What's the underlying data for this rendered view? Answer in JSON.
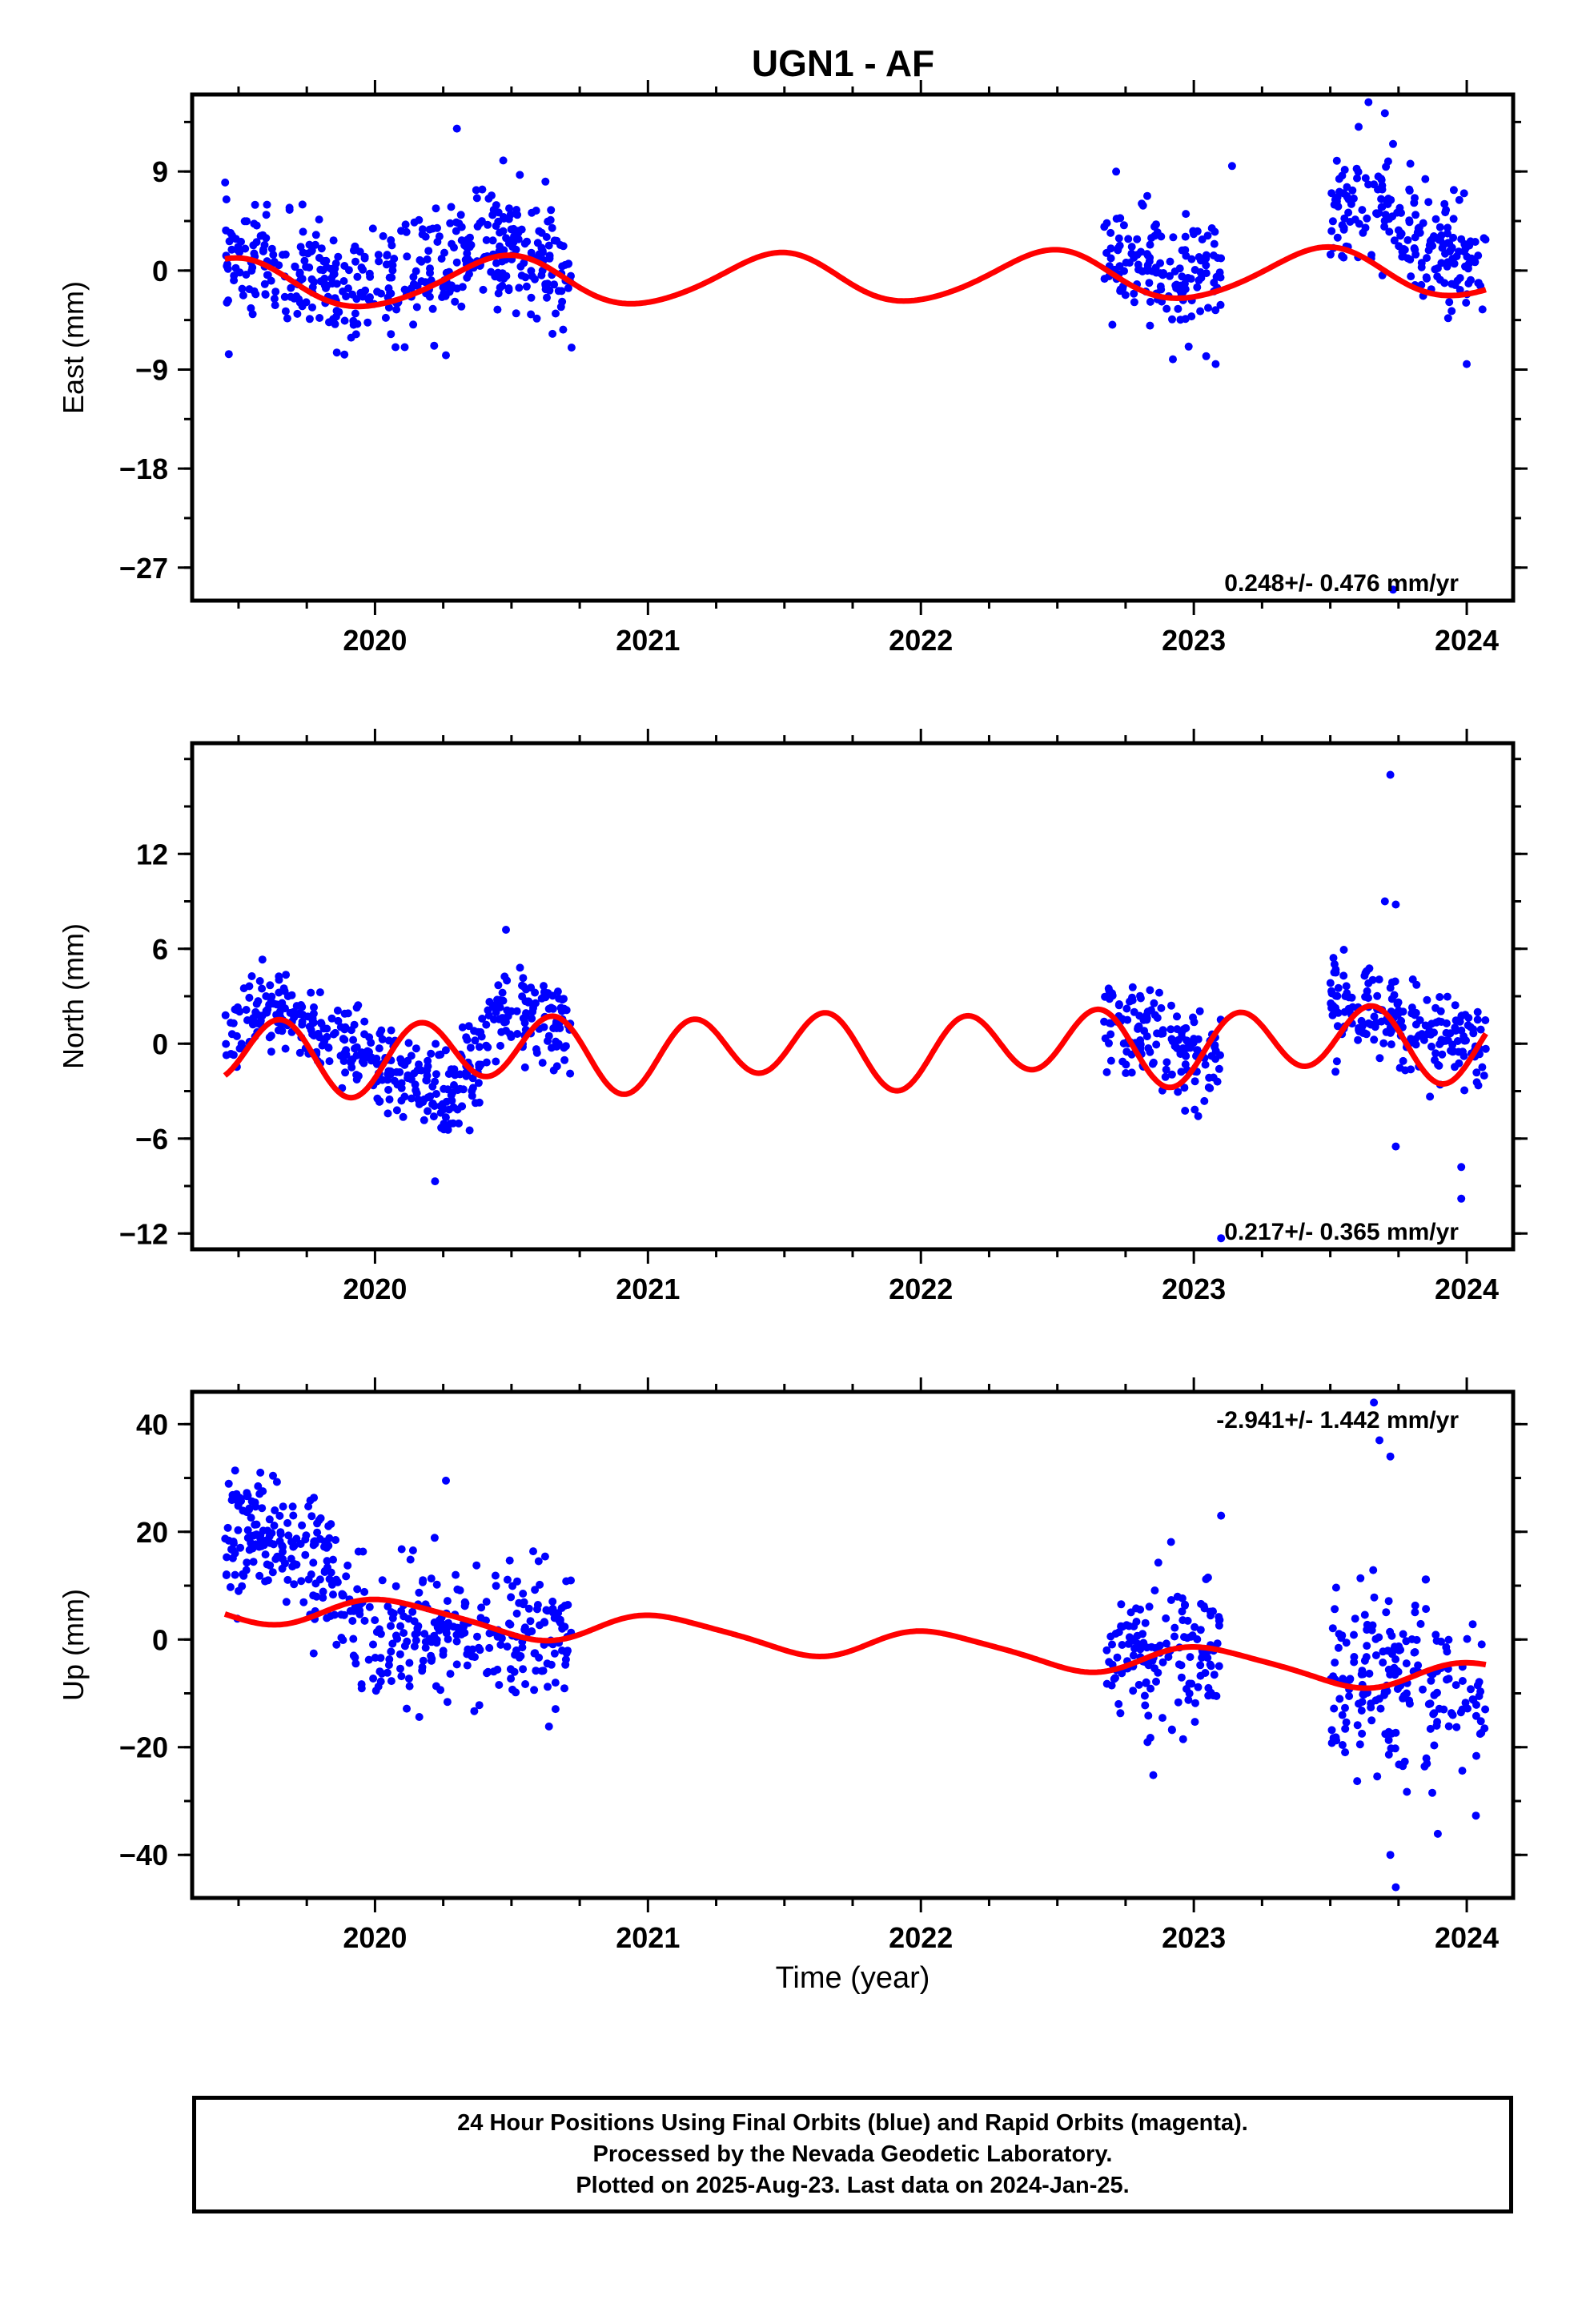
{
  "title": "UGN1 - AF",
  "xlabel": "Time (year)",
  "footer": {
    "line1": "24 Hour Positions Using Final Orbits (blue) and Rapid Orbits (magenta).",
    "line2": "Processed by the Nevada Geodetic Laboratory.",
    "line3": "Plotted on 2025-Aug-23. Last data on 2024-Jan-25."
  },
  "colors": {
    "points": "#0000ff",
    "model": "#ff0000",
    "frame": "#000000"
  },
  "chart_data": [
    {
      "type": "scatter",
      "component": "east",
      "ylabel": "East (mm)",
      "rate_label": "0.248+/- 0.476 mm/yr",
      "xlim": [
        2019.33,
        2024.17
      ],
      "ylim": [
        -30,
        16
      ],
      "yticks": [
        9,
        0,
        -9,
        -18,
        -27
      ],
      "xticks": [
        2020,
        2021,
        2022,
        2023,
        2024
      ],
      "model": {
        "offset": -0.7,
        "slope": 0.248,
        "ref_year": 2021.75,
        "annual_cos": -2.2,
        "annual_sin": 0.4,
        "semi_cos": 0.2,
        "semi_sin": 0.1
      },
      "data_segments": [
        {
          "start": 2019.45,
          "end": 2020.72,
          "spread": 2.5,
          "trend": [
            [
              2019.45,
              1.2
            ],
            [
              2019.95,
              -2
            ],
            [
              2020.45,
              2.5
            ],
            [
              2020.72,
              0
            ]
          ]
        },
        {
          "start": 2022.67,
          "end": 2023.1,
          "spread": 2.8,
          "trend": [
            [
              2022.67,
              0.5
            ],
            [
              2023.1,
              -0.5
            ]
          ]
        },
        {
          "start": 2023.5,
          "end": 2024.07,
          "spread": 2.5,
          "trend": [
            [
              2023.5,
              6
            ],
            [
              2023.75,
              4
            ],
            [
              2024.07,
              0
            ]
          ]
        }
      ],
      "outliers": [
        [
          2020.3,
          12.9
        ],
        [
          2020.47,
          10
        ],
        [
          2023.64,
          15.3
        ],
        [
          2023.7,
          14.3
        ],
        [
          2023.73,
          -29
        ],
        [
          2023.73,
          11.5
        ],
        [
          2023.14,
          9.5
        ],
        [
          2020.26,
          -7.7
        ],
        [
          2024.0,
          -8.5
        ],
        [
          2023.08,
          -8.5
        ],
        [
          2020.72,
          -7
        ]
      ]
    },
    {
      "type": "scatter",
      "component": "north",
      "ylabel": "North (mm)",
      "rate_label": "0.217+/- 0.365 mm/yr",
      "xlim": [
        2019.33,
        2024.17
      ],
      "ylim": [
        -13,
        19
      ],
      "yticks": [
        12,
        6,
        0,
        -6,
        -12
      ],
      "xticks": [
        2020,
        2021,
        2022,
        2023,
        2024
      ],
      "model": {
        "offset": -0.3,
        "slope": 0.217,
        "ref_year": 2021.75,
        "annual_cos": -0.6,
        "annual_sin": 0.2,
        "semi_cos": -0.9,
        "semi_sin": 1.9
      },
      "data_segments": [
        {
          "start": 2019.45,
          "end": 2020.72,
          "spread": 1.4,
          "trend": [
            [
              2019.45,
              0.5
            ],
            [
              2019.6,
              2.5
            ],
            [
              2019.95,
              -0.8
            ],
            [
              2020.15,
              -2.5
            ],
            [
              2020.25,
              -4
            ],
            [
              2020.5,
              2.5
            ],
            [
              2020.72,
              1
            ]
          ]
        },
        {
          "start": 2022.67,
          "end": 2023.1,
          "spread": 1.4,
          "trend": [
            [
              2022.67,
              1.5
            ],
            [
              2023.1,
              -1.5
            ]
          ]
        },
        {
          "start": 2023.5,
          "end": 2024.07,
          "spread": 1.4,
          "trend": [
            [
              2023.5,
              3
            ],
            [
              2024.07,
              -0.5
            ]
          ]
        }
      ],
      "outliers": [
        [
          2023.72,
          17
        ],
        [
          2023.7,
          9
        ],
        [
          2023.74,
          8.8
        ],
        [
          2023.98,
          -9.8
        ],
        [
          2023.98,
          -7.8
        ],
        [
          2023.1,
          -12.3
        ],
        [
          2020.22,
          -8.7
        ],
        [
          2020.48,
          7.2
        ],
        [
          2023.74,
          -6.5
        ]
      ]
    },
    {
      "type": "scatter",
      "component": "up",
      "ylabel": "Up (mm)",
      "rate_label": "-2.941+/- 1.442 mm/yr",
      "xlim": [
        2019.33,
        2024.17
      ],
      "ylim": [
        -48,
        46
      ],
      "yticks": [
        40,
        20,
        0,
        -20,
        -40
      ],
      "xticks": [
        2020,
        2021,
        2022,
        2023,
        2024
      ],
      "model": {
        "offset": -0.5,
        "slope": -2.941,
        "ref_year": 2021.75,
        "annual_cos": 2.5,
        "annual_sin": 1.2,
        "semi_cos": 0.3,
        "semi_sin": -0.4
      },
      "data_segments": [
        {
          "start": 2019.45,
          "end": 2020.72,
          "spread": 6.5,
          "trend": [
            [
              2019.45,
              20
            ],
            [
              2019.7,
              18
            ],
            [
              2020.0,
              0
            ],
            [
              2020.35,
              2
            ],
            [
              2020.72,
              -2
            ]
          ]
        },
        {
          "start": 2022.67,
          "end": 2023.1,
          "spread": 7,
          "trend": [
            [
              2022.67,
              -5
            ],
            [
              2023.1,
              -3
            ]
          ]
        },
        {
          "start": 2023.5,
          "end": 2024.07,
          "spread": 8,
          "trend": [
            [
              2023.5,
              -4
            ],
            [
              2024.07,
              -12
            ]
          ]
        }
      ],
      "outliers": [
        [
          2023.66,
          44
        ],
        [
          2023.68,
          37
        ],
        [
          2023.72,
          34
        ],
        [
          2023.74,
          -46
        ],
        [
          2023.72,
          -40
        ],
        [
          2020.26,
          29.5
        ],
        [
          2023.1,
          23
        ],
        [
          2019.58,
          31
        ]
      ]
    }
  ]
}
